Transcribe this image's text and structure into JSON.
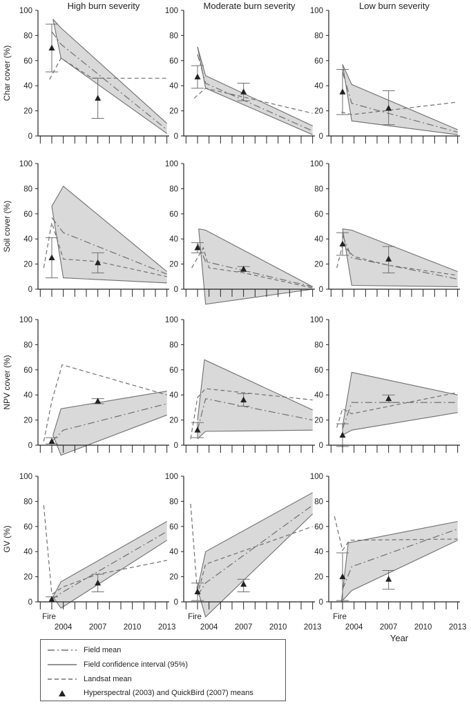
{
  "chart_data": {
    "type": "line",
    "columns": [
      "High burn severity",
      "Moderate burn severity",
      "Low burn severity"
    ],
    "rows": [
      "Char cover (%)",
      "Soil cover (%)",
      "NPV cover (%)",
      "GV (%)"
    ],
    "xlabel": "Year",
    "x_tick_labels": [
      "2004",
      "2007",
      "2010",
      "2013"
    ],
    "x_ticks": [
      2004,
      2007,
      2010,
      2013
    ],
    "fire_label": "Fire",
    "xlim": [
      2001.8,
      2013.2
    ],
    "ylim": [
      0,
      100
    ],
    "y_ticks": [
      0,
      20,
      40,
      60,
      80,
      100
    ],
    "panels": [
      {
        "row": 0,
        "col": 0,
        "ci_upper": [
          [
            2003.1,
            93
          ],
          [
            2003.8,
            86
          ],
          [
            2013,
            10
          ]
        ],
        "ci_lower": [
          [
            2003.1,
            93
          ],
          [
            2003.8,
            62
          ],
          [
            2013,
            2
          ]
        ],
        "field_mean": [
          [
            2003,
            83
          ],
          [
            2003.8,
            73
          ],
          [
            2013,
            5
          ]
        ],
        "landsat_mean": [
          [
            2002.8,
            45
          ],
          [
            2003.8,
            62
          ],
          [
            2006.5,
            46
          ],
          [
            2013,
            46
          ]
        ],
        "sensor_means": [
          {
            "x": 2003,
            "y": 70,
            "lo": 51,
            "hi": 89
          },
          {
            "x": 2007,
            "y": 30,
            "lo": 14,
            "hi": 46
          }
        ]
      },
      {
        "row": 0,
        "col": 1,
        "ci_upper": [
          [
            2003,
            71
          ],
          [
            2003.7,
            48
          ],
          [
            2013,
            8
          ]
        ],
        "ci_lower": [
          [
            2003,
            71
          ],
          [
            2003.7,
            38
          ],
          [
            2013,
            1
          ]
        ],
        "field_mean": [
          [
            2003,
            65
          ],
          [
            2003.7,
            42
          ],
          [
            2013,
            4
          ]
        ],
        "landsat_mean": [
          [
            2002.7,
            30
          ],
          [
            2003.7,
            38
          ],
          [
            2007,
            31
          ],
          [
            2013,
            18
          ]
        ],
        "sensor_means": [
          {
            "x": 2003,
            "y": 47,
            "lo": 38,
            "hi": 56
          },
          {
            "x": 2007,
            "y": 35,
            "lo": 28,
            "hi": 42
          }
        ]
      },
      {
        "row": 0,
        "col": 2,
        "ci_upper": [
          [
            2003,
            57
          ],
          [
            2003.8,
            41
          ],
          [
            2013,
            5
          ]
        ],
        "ci_lower": [
          [
            2003,
            57
          ],
          [
            2003.8,
            12
          ],
          [
            2013,
            1
          ]
        ],
        "field_mean": [
          [
            2003,
            51
          ],
          [
            2003.8,
            26
          ],
          [
            2013,
            3
          ]
        ],
        "landsat_mean": [
          [
            2002.9,
            19
          ],
          [
            2003.8,
            17
          ],
          [
            2013,
            27
          ]
        ],
        "sensor_means": [
          {
            "x": 2003,
            "y": 35,
            "lo": 17,
            "hi": 53
          },
          {
            "x": 2007,
            "y": 22,
            "lo": 9,
            "hi": 36
          }
        ]
      },
      {
        "row": 1,
        "col": 0,
        "ci_upper": [
          [
            2003,
            66
          ],
          [
            2004,
            82
          ],
          [
            2013,
            14
          ]
        ],
        "ci_lower": [
          [
            2003,
            66
          ],
          [
            2004,
            9
          ],
          [
            2013,
            5
          ]
        ],
        "field_mean": [
          [
            2003,
            57
          ],
          [
            2004,
            45
          ],
          [
            2013,
            12
          ]
        ],
        "landsat_mean": [
          [
            2002.3,
            17
          ],
          [
            2003,
            53
          ],
          [
            2004,
            24
          ],
          [
            2007,
            22
          ],
          [
            2013,
            10
          ]
        ],
        "sensor_means": [
          {
            "x": 2003,
            "y": 25,
            "lo": 9,
            "hi": 41
          },
          {
            "x": 2007,
            "y": 21,
            "lo": 13,
            "hi": 29
          }
        ]
      },
      {
        "row": 1,
        "col": 1,
        "ci_upper": [
          [
            2003.1,
            48
          ],
          [
            2003.7,
            47
          ],
          [
            2013,
            2
          ]
        ],
        "ci_lower": [
          [
            2003.1,
            48
          ],
          [
            2003.7,
            -12
          ],
          [
            2013,
            0
          ]
        ],
        "field_mean": [
          [
            2003,
            37
          ],
          [
            2003.7,
            22
          ],
          [
            2013,
            2
          ]
        ],
        "landsat_mean": [
          [
            2002.5,
            17
          ],
          [
            2003.5,
            33
          ],
          [
            2004,
            17
          ],
          [
            2007,
            13
          ],
          [
            2013,
            1
          ]
        ],
        "sensor_means": [
          {
            "x": 2003,
            "y": 33,
            "lo": 29,
            "hi": 37
          },
          {
            "x": 2007,
            "y": 16,
            "lo": 14,
            "hi": 18
          }
        ]
      },
      {
        "row": 1,
        "col": 2,
        "ci_upper": [
          [
            2003,
            48
          ],
          [
            2003.8,
            47
          ],
          [
            2013,
            14
          ]
        ],
        "ci_lower": [
          [
            2003,
            48
          ],
          [
            2003.8,
            3
          ],
          [
            2013,
            2
          ]
        ],
        "field_mean": [
          [
            2003,
            43
          ],
          [
            2003.8,
            25
          ],
          [
            2013,
            8
          ]
        ],
        "landsat_mean": [
          [
            2002.5,
            17
          ],
          [
            2003,
            35
          ],
          [
            2004,
            26
          ],
          [
            2007,
            19
          ],
          [
            2013,
            11
          ]
        ],
        "sensor_means": [
          {
            "x": 2003,
            "y": 36,
            "lo": 27,
            "hi": 45
          },
          {
            "x": 2007,
            "y": 24,
            "lo": 13,
            "hi": 34
          }
        ]
      },
      {
        "row": 2,
        "col": 0,
        "ci_upper": [
          [
            2003.1,
            8
          ],
          [
            2003.8,
            29
          ],
          [
            2013,
            43
          ]
        ],
        "ci_lower": [
          [
            2003.1,
            8
          ],
          [
            2003.8,
            -8
          ],
          [
            2013,
            24
          ]
        ],
        "field_mean": [
          [
            2003,
            3
          ],
          [
            2004,
            12
          ],
          [
            2013,
            33
          ]
        ],
        "landsat_mean": [
          [
            2002.3,
            3
          ],
          [
            2003,
            35
          ],
          [
            2003.9,
            64
          ],
          [
            2013,
            40
          ]
        ],
        "sensor_means": [
          {
            "x": 2003,
            "y": 3,
            "lo": 1,
            "hi": 6
          },
          {
            "x": 2007,
            "y": 35,
            "lo": 33,
            "hi": 37
          }
        ]
      },
      {
        "row": 2,
        "col": 1,
        "ci_upper": [
          [
            2003,
            20
          ],
          [
            2003.6,
            68
          ],
          [
            2013,
            28
          ]
        ],
        "ci_lower": [
          [
            2003,
            5
          ],
          [
            2003.7,
            11
          ],
          [
            2013,
            12
          ]
        ],
        "field_mean": [
          [
            2003,
            12
          ],
          [
            2003.7,
            37
          ],
          [
            2013,
            20
          ]
        ],
        "landsat_mean": [
          [
            2002.4,
            5
          ],
          [
            2003,
            38
          ],
          [
            2003.7,
            45
          ],
          [
            2013,
            36
          ]
        ],
        "sensor_means": [
          {
            "x": 2003,
            "y": 12,
            "lo": 6,
            "hi": 18
          },
          {
            "x": 2007,
            "y": 36,
            "lo": 31,
            "hi": 41
          }
        ]
      },
      {
        "row": 2,
        "col": 2,
        "ci_upper": [
          [
            2003,
            15
          ],
          [
            2003.8,
            58
          ],
          [
            2013,
            40
          ]
        ],
        "ci_lower": [
          [
            2003,
            8
          ],
          [
            2003.8,
            12
          ],
          [
            2013,
            26
          ]
        ],
        "field_mean": [
          [
            2003,
            13
          ],
          [
            2003.8,
            34
          ],
          [
            2013,
            34
          ]
        ],
        "landsat_mean": [
          [
            2002.5,
            14
          ],
          [
            2003,
            29
          ],
          [
            2003.8,
            25
          ],
          [
            2013,
            42
          ]
        ],
        "sensor_means": [
          {
            "x": 2003,
            "y": 8,
            "lo": -1,
            "hi": 17
          },
          {
            "x": 2007,
            "y": 37,
            "lo": 34,
            "hi": 40
          }
        ]
      },
      {
        "row": 3,
        "col": 0,
        "ci_upper": [
          [
            2003.1,
            4
          ],
          [
            2003.8,
            16
          ],
          [
            2013,
            64
          ]
        ],
        "ci_lower": [
          [
            2003.1,
            4
          ],
          [
            2003.8,
            -5
          ],
          [
            2013,
            49
          ]
        ],
        "field_mean": [
          [
            2003,
            2
          ],
          [
            2003.8,
            7
          ],
          [
            2013,
            56
          ]
        ],
        "landsat_mean": [
          [
            2002.3,
            77
          ],
          [
            2003,
            6
          ],
          [
            2004,
            12
          ],
          [
            2007,
            22
          ],
          [
            2013,
            33
          ]
        ],
        "sensor_means": [
          {
            "x": 2003,
            "y": 2,
            "lo": 0,
            "hi": 4
          },
          {
            "x": 2007,
            "y": 15,
            "lo": 8,
            "hi": 22
          }
        ]
      },
      {
        "row": 3,
        "col": 1,
        "ci_upper": [
          [
            2003,
            10
          ],
          [
            2003.7,
            40
          ],
          [
            2013,
            87
          ]
        ],
        "ci_lower": [
          [
            2003,
            10
          ],
          [
            2003.7,
            -12
          ],
          [
            2013,
            70
          ]
        ],
        "field_mean": [
          [
            2003,
            5
          ],
          [
            2003.7,
            15
          ],
          [
            2013,
            77
          ]
        ],
        "landsat_mean": [
          [
            2002.4,
            78
          ],
          [
            2003,
            6
          ],
          [
            2003.7,
            30
          ],
          [
            2013,
            60
          ]
        ],
        "sensor_means": [
          {
            "x": 2003,
            "y": 8,
            "lo": 1,
            "hi": 15
          },
          {
            "x": 2007,
            "y": 14,
            "lo": 8,
            "hi": 18
          }
        ]
      },
      {
        "row": 3,
        "col": 2,
        "ci_upper": [
          [
            2002.9,
            0
          ],
          [
            2003.5,
            47
          ],
          [
            2013,
            64
          ]
        ],
        "ci_lower": [
          [
            2002.9,
            0
          ],
          [
            2003.8,
            9
          ],
          [
            2013,
            49
          ]
        ],
        "field_mean": [
          [
            2003,
            10
          ],
          [
            2003.8,
            28
          ],
          [
            2013,
            58
          ]
        ],
        "landsat_mean": [
          [
            2002.3,
            68
          ],
          [
            2003,
            41
          ],
          [
            2003.6,
            49
          ],
          [
            2013,
            50
          ]
        ],
        "sensor_means": [
          {
            "x": 2003,
            "y": 20,
            "lo": 1,
            "hi": 39
          },
          {
            "x": 2007,
            "y": 18,
            "lo": 10,
            "hi": 25
          }
        ]
      }
    ]
  },
  "legend": {
    "items": [
      {
        "key": "field_mean",
        "label": "Field mean"
      },
      {
        "key": "ci",
        "label": "Field confidence interval (95%)"
      },
      {
        "key": "landsat",
        "label": "Landsat mean"
      },
      {
        "key": "sensor",
        "label": "Hyperspectral (2003) and QuickBird (2007) means"
      }
    ]
  },
  "colors": {
    "band": "#d9d9d9",
    "line": "#6e6e6e",
    "axis": "#222222",
    "marker": "#222222"
  }
}
